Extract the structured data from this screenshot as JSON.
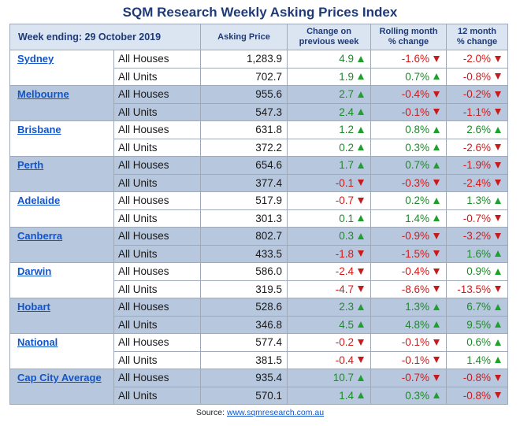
{
  "title": "SQM Research Weekly Asking Prices Index",
  "header": {
    "week": "Week ending:  29 October 2019",
    "asking": "Asking Price",
    "change_1": "Change on",
    "change_2": "previous week",
    "rolling_1": "Rolling month",
    "rolling_2": "% change",
    "twelve_1": "12 month",
    "twelve_2": "% change"
  },
  "rows": [
    {
      "city": "Sydney",
      "items": [
        {
          "type": "All Houses",
          "price": "1,283.9",
          "change": "4.9",
          "change_dir": "up",
          "rolling": "-1.6%",
          "rolling_dir": "down",
          "twelve": "-2.0%",
          "twelve_dir": "down"
        },
        {
          "type": "All Units",
          "price": "702.7",
          "change": "1.9",
          "change_dir": "up",
          "rolling": "0.7%",
          "rolling_dir": "up",
          "twelve": "-0.8%",
          "twelve_dir": "down"
        }
      ]
    },
    {
      "city": "Melbourne",
      "items": [
        {
          "type": "All Houses",
          "price": "955.6",
          "change": "2.7",
          "change_dir": "up",
          "rolling": "-0.4%",
          "rolling_dir": "down",
          "twelve": "-0.2%",
          "twelve_dir": "down"
        },
        {
          "type": "All Units",
          "price": "547.3",
          "change": "2.4",
          "change_dir": "up",
          "rolling": "-0.1%",
          "rolling_dir": "down",
          "twelve": "-1.1%",
          "twelve_dir": "down"
        }
      ]
    },
    {
      "city": "Brisbane",
      "items": [
        {
          "type": "All Houses",
          "price": "631.8",
          "change": "1.2",
          "change_dir": "up",
          "rolling": "0.8%",
          "rolling_dir": "up",
          "twelve": "2.6%",
          "twelve_dir": "up"
        },
        {
          "type": "All Units",
          "price": "372.2",
          "change": "0.2",
          "change_dir": "up",
          "rolling": "0.3%",
          "rolling_dir": "up",
          "twelve": "-2.6%",
          "twelve_dir": "down"
        }
      ]
    },
    {
      "city": "Perth",
      "items": [
        {
          "type": "All Houses",
          "price": "654.6",
          "change": "1.7",
          "change_dir": "up",
          "rolling": "0.7%",
          "rolling_dir": "up",
          "twelve": "-1.9%",
          "twelve_dir": "down"
        },
        {
          "type": "All Units",
          "price": "377.4",
          "change": "-0.1",
          "change_dir": "down",
          "rolling": "-0.3%",
          "rolling_dir": "down",
          "twelve": "-2.4%",
          "twelve_dir": "down"
        }
      ]
    },
    {
      "city": "Adelaide",
      "items": [
        {
          "type": "All Houses",
          "price": "517.9",
          "change": "-0.7",
          "change_dir": "down",
          "rolling": "0.2%",
          "rolling_dir": "up",
          "twelve": "1.3%",
          "twelve_dir": "up"
        },
        {
          "type": "All Units",
          "price": "301.3",
          "change": "0.1",
          "change_dir": "up",
          "rolling": "1.4%",
          "rolling_dir": "up",
          "twelve": "-0.7%",
          "twelve_dir": "down"
        }
      ]
    },
    {
      "city": "Canberra",
      "items": [
        {
          "type": "All Houses",
          "price": "802.7",
          "change": "0.3",
          "change_dir": "up",
          "rolling": "-0.9%",
          "rolling_dir": "down",
          "twelve": "-3.2%",
          "twelve_dir": "down"
        },
        {
          "type": "All Units",
          "price": "433.5",
          "change": "-1.8",
          "change_dir": "down",
          "rolling": "-1.5%",
          "rolling_dir": "down",
          "twelve": "1.6%",
          "twelve_dir": "up"
        }
      ]
    },
    {
      "city": "Darwin",
      "items": [
        {
          "type": "All Houses",
          "price": "586.0",
          "change": "-2.4",
          "change_dir": "down",
          "rolling": "-0.4%",
          "rolling_dir": "down",
          "twelve": "0.9%",
          "twelve_dir": "up"
        },
        {
          "type": "All Units",
          "price": "319.5",
          "change": "-4.7",
          "change_dir": "down",
          "rolling": "-8.6%",
          "rolling_dir": "down",
          "twelve": "-13.5%",
          "twelve_dir": "down"
        }
      ]
    },
    {
      "city": "Hobart",
      "items": [
        {
          "type": "All Houses",
          "price": "528.6",
          "change": "2.3",
          "change_dir": "up",
          "rolling": "1.3%",
          "rolling_dir": "up",
          "twelve": "6.7%",
          "twelve_dir": "up"
        },
        {
          "type": "All Units",
          "price": "346.8",
          "change": "4.5",
          "change_dir": "up",
          "rolling": "4.8%",
          "rolling_dir": "up",
          "twelve": "9.5%",
          "twelve_dir": "up"
        }
      ]
    },
    {
      "city": "National",
      "items": [
        {
          "type": "All Houses",
          "price": "577.4",
          "change": "-0.2",
          "change_dir": "down",
          "rolling": "-0.1%",
          "rolling_dir": "down",
          "twelve": "0.6%",
          "twelve_dir": "up"
        },
        {
          "type": "All Units",
          "price": "381.5",
          "change": "-0.4",
          "change_dir": "down",
          "rolling": "-0.1%",
          "rolling_dir": "down",
          "twelve": "1.4%",
          "twelve_dir": "up"
        }
      ]
    },
    {
      "city": "Cap City Average",
      "items": [
        {
          "type": "All Houses",
          "price": "935.4",
          "change": "10.7",
          "change_dir": "up",
          "rolling": "-0.7%",
          "rolling_dir": "down",
          "twelve": "-0.8%",
          "twelve_dir": "down"
        },
        {
          "type": "All Units",
          "price": "570.1",
          "change": "1.4",
          "change_dir": "up",
          "rolling": "0.3%",
          "rolling_dir": "up",
          "twelve": "-0.8%",
          "twelve_dir": "down"
        }
      ]
    }
  ],
  "source": {
    "label": "Source:",
    "link": "www.sqmresearch.com.au"
  },
  "colors": {
    "header_bg": "#dbe5f1",
    "shade_bg": "#b7c7dd",
    "positive": "#1d8a2a",
    "negative": "#d41919",
    "link": "#1155cc"
  }
}
